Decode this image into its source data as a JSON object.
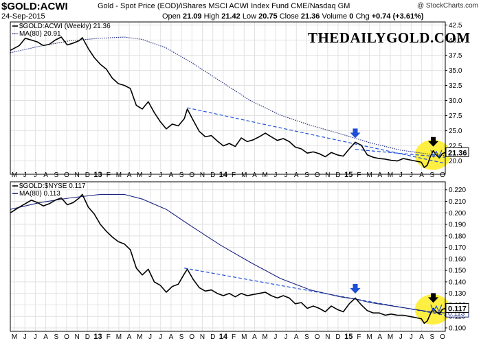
{
  "header": {
    "symbol": "$GOLD:ACWI",
    "description": "Gold - Spot Price (EOD)/iShares MSCI ACWI Index Fund CME/Nasdaq GM",
    "date": "24-Sep-2015",
    "open_label": "Open",
    "open": "21.09",
    "high_label": "High",
    "high": "21.42",
    "low_label": "Low",
    "low": "20.75",
    "close_label": "Close",
    "close": "21.36",
    "volume_label": "Volume",
    "volume": "0",
    "chg_label": "Chg",
    "chg": "+0.74 (+3.61%)",
    "copyright": "@ StockCharts.com"
  },
  "watermark": "THEDAILYGOLD.COM",
  "colors": {
    "price": "#000000",
    "ma": "#1a237e",
    "trend": "#1e4fd8",
    "arrow_blue": "#1e4fd8",
    "arrow_black": "#000000",
    "highlight": "#ffee33",
    "grid": "#e2e2e2"
  },
  "x_axis": {
    "ticks": [
      "M",
      "J",
      "J",
      "A",
      "S",
      "O",
      "N",
      "D",
      "13",
      "F",
      "M",
      "A",
      "M",
      "J",
      "J",
      "A",
      "S",
      "O",
      "N",
      "D",
      "14",
      "F",
      "M",
      "A",
      "M",
      "J",
      "J",
      "A",
      "S",
      "O",
      "N",
      "D",
      "15",
      "F",
      "M",
      "A",
      "M",
      "J",
      "J",
      "A",
      "S",
      "O"
    ],
    "bold_ticks": [
      "13",
      "14",
      "15"
    ]
  },
  "chart_data": [
    {
      "type": "line",
      "legend": [
        {
          "label": "$GOLD:ACWI (Weekly) 21.36",
          "style": "solid"
        },
        {
          "label": "MA(80) 20.91",
          "style": "dotted"
        }
      ],
      "ylim": [
        17.8,
        43
      ],
      "yticks": [
        20.0,
        22.5,
        25.0,
        27.5,
        30.0,
        32.5,
        35.0,
        37.5,
        40.0,
        42.5
      ],
      "last_value_label": "21.36",
      "price": [
        [
          0,
          38.3
        ],
        [
          3,
          39.1
        ],
        [
          5,
          40.3
        ],
        [
          7,
          40.0
        ],
        [
          9,
          39.7
        ],
        [
          11,
          39.1
        ],
        [
          13,
          39.3
        ],
        [
          15,
          40.0
        ],
        [
          17,
          40.5
        ],
        [
          19,
          39.2
        ],
        [
          21,
          39.5
        ],
        [
          23,
          39.9
        ],
        [
          24,
          40.4
        ],
        [
          26,
          38.6
        ],
        [
          28,
          37.1
        ],
        [
          30,
          36.0
        ],
        [
          32,
          35.2
        ],
        [
          34,
          33.7
        ],
        [
          36,
          32.8
        ],
        [
          38,
          32.5
        ],
        [
          40,
          32.0
        ],
        [
          42,
          29.2
        ],
        [
          44,
          28.6
        ],
        [
          46,
          29.8
        ],
        [
          48,
          28.0
        ],
        [
          50,
          26.5
        ],
        [
          52,
          25.3
        ],
        [
          54,
          26.1
        ],
        [
          56,
          25.8
        ],
        [
          58,
          27.0
        ],
        [
          59,
          28.6
        ],
        [
          61,
          26.7
        ],
        [
          63,
          24.9
        ],
        [
          65,
          24.0
        ],
        [
          67,
          24.2
        ],
        [
          69,
          23.3
        ],
        [
          71,
          22.5
        ],
        [
          73,
          22.9
        ],
        [
          75,
          22.4
        ],
        [
          77,
          23.8
        ],
        [
          79,
          23.2
        ],
        [
          81,
          23.5
        ],
        [
          83,
          24.0
        ],
        [
          85,
          24.6
        ],
        [
          87,
          24.0
        ],
        [
          89,
          23.4
        ],
        [
          91,
          23.7
        ],
        [
          93,
          23.2
        ],
        [
          95,
          22.3
        ],
        [
          97,
          22.0
        ],
        [
          99,
          21.3
        ],
        [
          101,
          21.5
        ],
        [
          103,
          21.2
        ],
        [
          105,
          20.7
        ],
        [
          107,
          21.4
        ],
        [
          109,
          21.0
        ],
        [
          111,
          20.8
        ],
        [
          113,
          22.0
        ],
        [
          115,
          23.1
        ],
        [
          117,
          22.6
        ],
        [
          119,
          21.0
        ],
        [
          121,
          20.6
        ],
        [
          123,
          20.4
        ],
        [
          125,
          20.3
        ],
        [
          127,
          20.1
        ],
        [
          129,
          20.0
        ],
        [
          131,
          20.4
        ],
        [
          133,
          20.2
        ],
        [
          135,
          20.0
        ],
        [
          137,
          19.8
        ],
        [
          138,
          18.9
        ],
        [
          139,
          19.3
        ],
        [
          140,
          20.7
        ],
        [
          141,
          21.7
        ],
        [
          142,
          21.0
        ],
        [
          143,
          20.5
        ],
        [
          144,
          21.2
        ],
        [
          145,
          21.4
        ]
      ],
      "ma": [
        [
          0,
          37.9
        ],
        [
          10,
          39.0
        ],
        [
          20,
          39.9
        ],
        [
          30,
          40.3
        ],
        [
          38,
          40.5
        ],
        [
          44,
          40.1
        ],
        [
          52,
          38.7
        ],
        [
          60,
          36.4
        ],
        [
          70,
          33.2
        ],
        [
          80,
          30.0
        ],
        [
          90,
          27.6
        ],
        [
          100,
          25.9
        ],
        [
          110,
          24.5
        ],
        [
          120,
          23.0
        ],
        [
          130,
          21.8
        ],
        [
          140,
          21.1
        ],
        [
          145,
          20.9
        ]
      ],
      "trendline": [
        [
          59,
          28.8
        ],
        [
          145,
          19.6
        ]
      ],
      "ma_trend": [
        [
          115,
          21.9
        ],
        [
          145,
          20.6
        ]
      ],
      "arrows": [
        {
          "x": 115,
          "y": 24.0,
          "color": "blue"
        },
        {
          "x": 141,
          "y": 22.6,
          "color": "black"
        }
      ],
      "highlight": {
        "x": 142,
        "y": 21.0
      }
    },
    {
      "type": "line",
      "legend": [
        {
          "label": "$GOLD:$NYSE 0.117",
          "style": "solid"
        },
        {
          "label": "MA(80) 0.113",
          "style": "solid"
        }
      ],
      "ylim": [
        0.097,
        0.227
      ],
      "yticks": [
        0.1,
        0.11,
        0.12,
        0.13,
        0.14,
        0.15,
        0.16,
        0.17,
        0.18,
        0.19,
        0.2,
        0.21,
        0.22
      ],
      "last_value_label": "0.117",
      "ma_value_label": "0.113",
      "price": [
        [
          0,
          0.2
        ],
        [
          3,
          0.205
        ],
        [
          5,
          0.208
        ],
        [
          7,
          0.211
        ],
        [
          9,
          0.209
        ],
        [
          11,
          0.206
        ],
        [
          13,
          0.208
        ],
        [
          15,
          0.211
        ],
        [
          17,
          0.213
        ],
        [
          19,
          0.207
        ],
        [
          21,
          0.209
        ],
        [
          23,
          0.213
        ],
        [
          24,
          0.216
        ],
        [
          26,
          0.205
        ],
        [
          28,
          0.199
        ],
        [
          30,
          0.19
        ],
        [
          32,
          0.184
        ],
        [
          34,
          0.179
        ],
        [
          36,
          0.175
        ],
        [
          38,
          0.173
        ],
        [
          40,
          0.168
        ],
        [
          42,
          0.152
        ],
        [
          44,
          0.146
        ],
        [
          46,
          0.151
        ],
        [
          48,
          0.14
        ],
        [
          50,
          0.137
        ],
        [
          52,
          0.131
        ],
        [
          54,
          0.136
        ],
        [
          56,
          0.138
        ],
        [
          58,
          0.147
        ],
        [
          59,
          0.151
        ],
        [
          61,
          0.142
        ],
        [
          63,
          0.135
        ],
        [
          65,
          0.132
        ],
        [
          67,
          0.133
        ],
        [
          69,
          0.13
        ],
        [
          71,
          0.128
        ],
        [
          73,
          0.13
        ],
        [
          75,
          0.127
        ],
        [
          77,
          0.13
        ],
        [
          79,
          0.128
        ],
        [
          81,
          0.129
        ],
        [
          83,
          0.13
        ],
        [
          85,
          0.131
        ],
        [
          87,
          0.128
        ],
        [
          89,
          0.126
        ],
        [
          91,
          0.128
        ],
        [
          93,
          0.126
        ],
        [
          95,
          0.121
        ],
        [
          97,
          0.122
        ],
        [
          99,
          0.117
        ],
        [
          101,
          0.119
        ],
        [
          103,
          0.117
        ],
        [
          105,
          0.114
        ],
        [
          107,
          0.119
        ],
        [
          109,
          0.116
        ],
        [
          111,
          0.114
        ],
        [
          113,
          0.121
        ],
        [
          115,
          0.126
        ],
        [
          117,
          0.12
        ],
        [
          119,
          0.115
        ],
        [
          121,
          0.113
        ],
        [
          123,
          0.113
        ],
        [
          125,
          0.111
        ],
        [
          127,
          0.112
        ],
        [
          129,
          0.111
        ],
        [
          131,
          0.111
        ],
        [
          133,
          0.11
        ],
        [
          135,
          0.109
        ],
        [
          137,
          0.108
        ],
        [
          138,
          0.104
        ],
        [
          139,
          0.106
        ],
        [
          140,
          0.112
        ],
        [
          141,
          0.117
        ],
        [
          142,
          0.114
        ],
        [
          143,
          0.112
        ],
        [
          144,
          0.116
        ],
        [
          145,
          0.117
        ]
      ],
      "ma": [
        [
          0,
          0.203
        ],
        [
          10,
          0.209
        ],
        [
          20,
          0.213
        ],
        [
          30,
          0.216
        ],
        [
          38,
          0.216
        ],
        [
          44,
          0.212
        ],
        [
          52,
          0.203
        ],
        [
          60,
          0.189
        ],
        [
          70,
          0.172
        ],
        [
          80,
          0.157
        ],
        [
          90,
          0.143
        ],
        [
          100,
          0.133
        ],
        [
          110,
          0.127
        ],
        [
          115,
          0.125
        ],
        [
          120,
          0.122
        ],
        [
          130,
          0.118
        ],
        [
          140,
          0.114
        ],
        [
          145,
          0.113
        ]
      ],
      "trendline": [
        [
          58,
          0.152
        ],
        [
          145,
          0.111
        ]
      ],
      "arrows": [
        {
          "x": 115,
          "y": 0.131,
          "color": "blue"
        },
        {
          "x": 141,
          "y": 0.123,
          "color": "black"
        }
      ],
      "highlight": {
        "x": 142,
        "y": 0.116
      }
    }
  ]
}
